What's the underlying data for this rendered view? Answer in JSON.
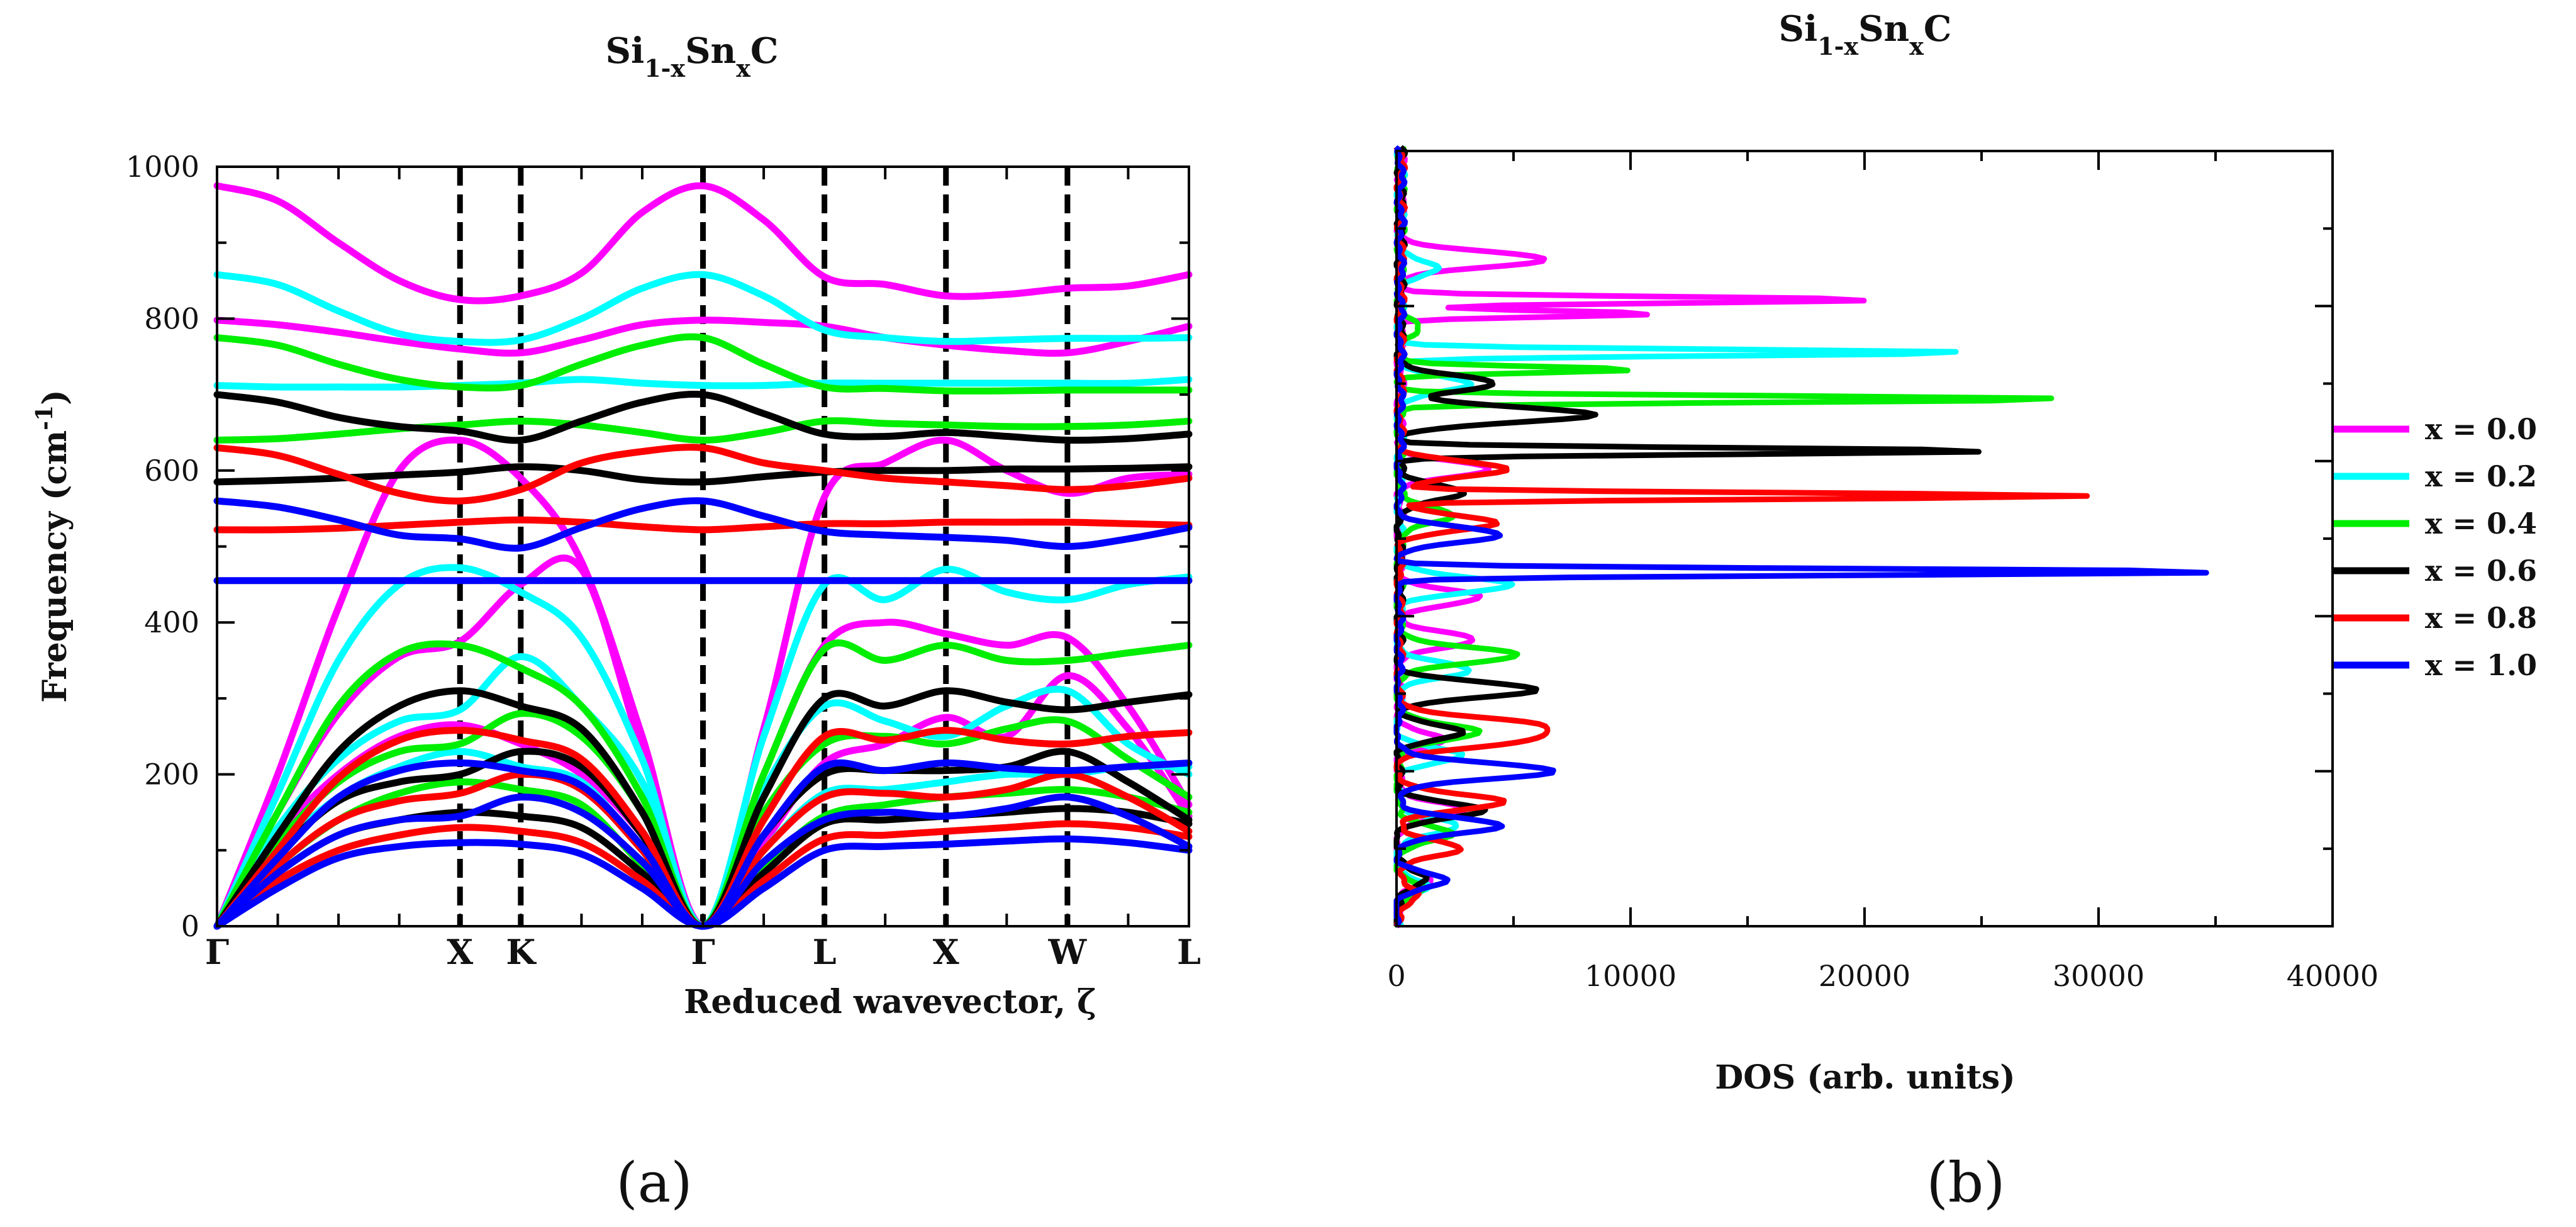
{
  "panel_a_label": "(a)",
  "panel_b_label": "(b)",
  "chart_data": [
    {
      "type": "line",
      "panel": "a",
      "title": "Si1-xSnxC",
      "title_parts": {
        "base1": "Si",
        "sub1": "1-x",
        "base2": "Sn",
        "sub2": "x",
        "base3": "C"
      },
      "xlabel": "Reduced wavevector, ζ",
      "ylabel": "Frequency (cm⁻¹)",
      "ylabel_parts": {
        "text": "Frequency (cm",
        "sup": "-1",
        "close": ")"
      },
      "ylim": [
        0,
        1000
      ],
      "yticks": [
        0,
        200,
        400,
        600,
        800,
        1000
      ],
      "xlim": [
        0,
        4.0
      ],
      "high_symmetry_points": [
        {
          "label": "Γ",
          "x": 0.0
        },
        {
          "label": "X",
          "x": 1.0
        },
        {
          "label": "K",
          "x": 1.25
        },
        {
          "label": "Γ",
          "x": 2.0
        },
        {
          "label": "L",
          "x": 2.5
        },
        {
          "label": "X",
          "x": 3.0
        },
        {
          "label": "W",
          "x": 3.5
        },
        {
          "label": "L",
          "x": 4.0
        }
      ],
      "x": [
        0.0,
        0.25,
        0.5,
        0.75,
        1.0,
        1.25,
        1.5,
        1.75,
        2.0,
        2.25,
        2.5,
        2.75,
        3.0,
        3.25,
        3.5,
        3.75,
        4.0
      ],
      "series": [
        {
          "name": "x = 0.0",
          "color": "#ff00ff",
          "branches": [
            [
              975,
              955,
              900,
              850,
              825,
              830,
              860,
              940,
              975,
              930,
              855,
              845,
              830,
              832,
              840,
              843,
              858
            ],
            [
              798,
              792,
              782,
              770,
              760,
              755,
              772,
              792,
              798,
              795,
              790,
              775,
              765,
              758,
              755,
              770,
              790
            ],
            [
              0,
              200,
              420,
              600,
              640,
              590,
              480,
              250,
              0,
              260,
              565,
              610,
              640,
              600,
              570,
              590,
              595
            ],
            [
              0,
              150,
              280,
              355,
              375,
              450,
              470,
              230,
              0,
              200,
              370,
              400,
              385,
              370,
              380,
              290,
              160
            ],
            [
              0,
              120,
              200,
              250,
              265,
              240,
              200,
              120,
              0,
              110,
              215,
              240,
              275,
              250,
              330,
              260,
              145
            ]
          ]
        },
        {
          "name": "x = 0.2",
          "color": "#00ffff",
          "branches": [
            [
              858,
              845,
              810,
              780,
              770,
              772,
              800,
              840,
              858,
              830,
              785,
              775,
              770,
              772,
              774,
              774,
              775
            ],
            [
              712,
              710,
              710,
              710,
              712,
              715,
              720,
              715,
              712,
              712,
              715,
              715,
              715,
              715,
              715,
              715,
              720
            ],
            [
              0,
              175,
              350,
              450,
              472,
              440,
              380,
              220,
              0,
              250,
              450,
              430,
              470,
              440,
              430,
              450,
              460
            ],
            [
              0,
              130,
              220,
              270,
              285,
              355,
              290,
              190,
              0,
              180,
              290,
              270,
              250,
              290,
              310,
              240,
              200
            ],
            [
              0,
              100,
              170,
              210,
              230,
              210,
              190,
              100,
              0,
              100,
              175,
              180,
              190,
              200,
              200,
              210,
              210
            ]
          ]
        },
        {
          "name": "x = 0.4",
          "color": "#00ee00",
          "branches": [
            [
              775,
              765,
              740,
              720,
              710,
              712,
              740,
              765,
              775,
              740,
              710,
              708,
              705,
              705,
              706,
              706,
              706
            ],
            [
              640,
              642,
              648,
              655,
              660,
              665,
              660,
              650,
              640,
              650,
              665,
              662,
              660,
              658,
              658,
              660,
              665
            ],
            [
              0,
              150,
              290,
              360,
              370,
              340,
              290,
              170,
              0,
              200,
              365,
              350,
              370,
              350,
              350,
              360,
              370
            ],
            [
              0,
              110,
              190,
              230,
              240,
              280,
              250,
              150,
              0,
              150,
              240,
              250,
              240,
              260,
              270,
              220,
              170
            ],
            [
              0,
              80,
              140,
              175,
              190,
              180,
              160,
              80,
              0,
              80,
              145,
              160,
              170,
              175,
              180,
              170,
              150
            ]
          ]
        },
        {
          "name": "x = 0.6",
          "color": "#000000",
          "branches": [
            [
              700,
              690,
              670,
              658,
              652,
              640,
              665,
              690,
              700,
              675,
              648,
              645,
              650,
              645,
              640,
              642,
              648
            ],
            [
              585,
              587,
              590,
              594,
              598,
              605,
              600,
              588,
              585,
              592,
              598,
              600,
              600,
              602,
              602,
              603,
              605
            ],
            [
              0,
              120,
              230,
              290,
              310,
              290,
              260,
              150,
              0,
              170,
              300,
              290,
              310,
              295,
              285,
              295,
              305
            ],
            [
              0,
              95,
              165,
              190,
              200,
              230,
              210,
              120,
              0,
              120,
              200,
              205,
              205,
              210,
              230,
              190,
              140
            ],
            [
              0,
              70,
              120,
              140,
              150,
              145,
              130,
              70,
              0,
              70,
              135,
              140,
              145,
              150,
              155,
              150,
              135
            ]
          ]
        },
        {
          "name": "x = 0.8",
          "color": "#ff0000",
          "branches": [
            [
              630,
              620,
              595,
              570,
              560,
              575,
              610,
              625,
              630,
              610,
              600,
              590,
              585,
              580,
              575,
              580,
              590
            ],
            [
              522,
              522,
              524,
              528,
              532,
              535,
              532,
              526,
              522,
              526,
              530,
              530,
              532,
              532,
              532,
              530,
              528
            ],
            [
              0,
              100,
              195,
              245,
              258,
              245,
              220,
              125,
              0,
              140,
              250,
              245,
              258,
              245,
              240,
              250,
              255
            ],
            [
              0,
              80,
              140,
              165,
              175,
              200,
              180,
              100,
              0,
              100,
              170,
              175,
              170,
              180,
              200,
              170,
              125
            ],
            [
              0,
              60,
              100,
              120,
              130,
              125,
              110,
              60,
              0,
              60,
              115,
              120,
              125,
              130,
              135,
              130,
              118
            ]
          ]
        },
        {
          "name": "x = 1.0",
          "color": "#0000ff",
          "branches": [
            [
              560,
              552,
              535,
              515,
              510,
              498,
              525,
              550,
              560,
              540,
              520,
              515,
              512,
              508,
              500,
              510,
              525
            ],
            [
              455,
              455,
              455,
              455,
              455,
              455,
              455,
              455,
              455,
              455,
              455,
              455,
              455,
              455,
              455,
              455,
              455
            ],
            [
              0,
              90,
              170,
              205,
              215,
              205,
              185,
              105,
              0,
              120,
              210,
              205,
              215,
              208,
              205,
              210,
              215
            ],
            [
              0,
              70,
              120,
              140,
              145,
              170,
              150,
              85,
              0,
              85,
              140,
              150,
              145,
              155,
              170,
              145,
              105
            ],
            [
              0,
              50,
              90,
              105,
              110,
              108,
              95,
              50,
              0,
              50,
              100,
              105,
              108,
              112,
              115,
              110,
              100
            ]
          ]
        }
      ]
    },
    {
      "type": "line",
      "panel": "b",
      "title": "Si1-xSnxC",
      "title_parts": {
        "base1": "Si",
        "sub1": "1-x",
        "base2": "Sn",
        "sub2": "x",
        "base3": "C"
      },
      "xlabel": "DOS (arb. units)",
      "ylabel": "",
      "xlim": [
        0,
        40000
      ],
      "xticks": [
        0,
        10000,
        20000,
        30000,
        40000
      ],
      "ylim": [
        0,
        1000
      ],
      "legend_position": "right",
      "series": [
        {
          "name": "x = 0.0",
          "color": "#ff00ff",
          "peaks": [
            [
              860,
              6200
            ],
            [
              808,
              20400
            ],
            [
              790,
              11000
            ],
            [
              590,
              3800
            ],
            [
              425,
              3400
            ],
            [
              370,
              3200
            ],
            [
              240,
              1800
            ],
            [
              150,
              3000
            ],
            [
              60,
              1400
            ]
          ]
        },
        {
          "name": "x = 0.2",
          "color": "#00ffff",
          "peaks": [
            [
              848,
              1500
            ],
            [
              740,
              24500
            ],
            [
              700,
              3000
            ],
            [
              440,
              4800
            ],
            [
              330,
              3000
            ],
            [
              220,
              2600
            ],
            [
              130,
              2600
            ],
            [
              50,
              1200
            ]
          ]
        },
        {
          "name": "x = 0.4",
          "color": "#00ee00",
          "peaks": [
            [
              770,
              800
            ],
            [
              718,
              10000
            ],
            [
              680,
              28700
            ],
            [
              530,
              2400
            ],
            [
              350,
              5200
            ],
            [
              250,
              3500
            ],
            [
              120,
              2400
            ],
            [
              50,
              1000
            ]
          ]
        },
        {
          "name": "x = 0.6",
          "color": "#000000",
          "peaks": [
            [
              700,
              4000
            ],
            [
              660,
              8200
            ],
            [
              613,
              25600
            ],
            [
              560,
              2800
            ],
            [
              305,
              5800
            ],
            [
              250,
              2600
            ],
            [
              150,
              3600
            ],
            [
              60,
              1300
            ]
          ]
        },
        {
          "name": "x = 0.8",
          "color": "#ff0000",
          "peaks": [
            [
              590,
              4500
            ],
            [
              555,
              29400
            ],
            [
              520,
              4000
            ],
            [
              260,
              5600
            ],
            [
              240,
              4800
            ],
            [
              160,
              4600
            ],
            [
              100,
              2800
            ],
            [
              40,
              1000
            ]
          ]
        },
        {
          "name": "x = 1.0",
          "color": "#0000ff",
          "peaks": [
            [
              505,
              4200
            ],
            [
              457,
              35600
            ],
            [
              200,
              6800
            ],
            [
              130,
              4500
            ],
            [
              60,
              2000
            ]
          ]
        }
      ]
    }
  ]
}
